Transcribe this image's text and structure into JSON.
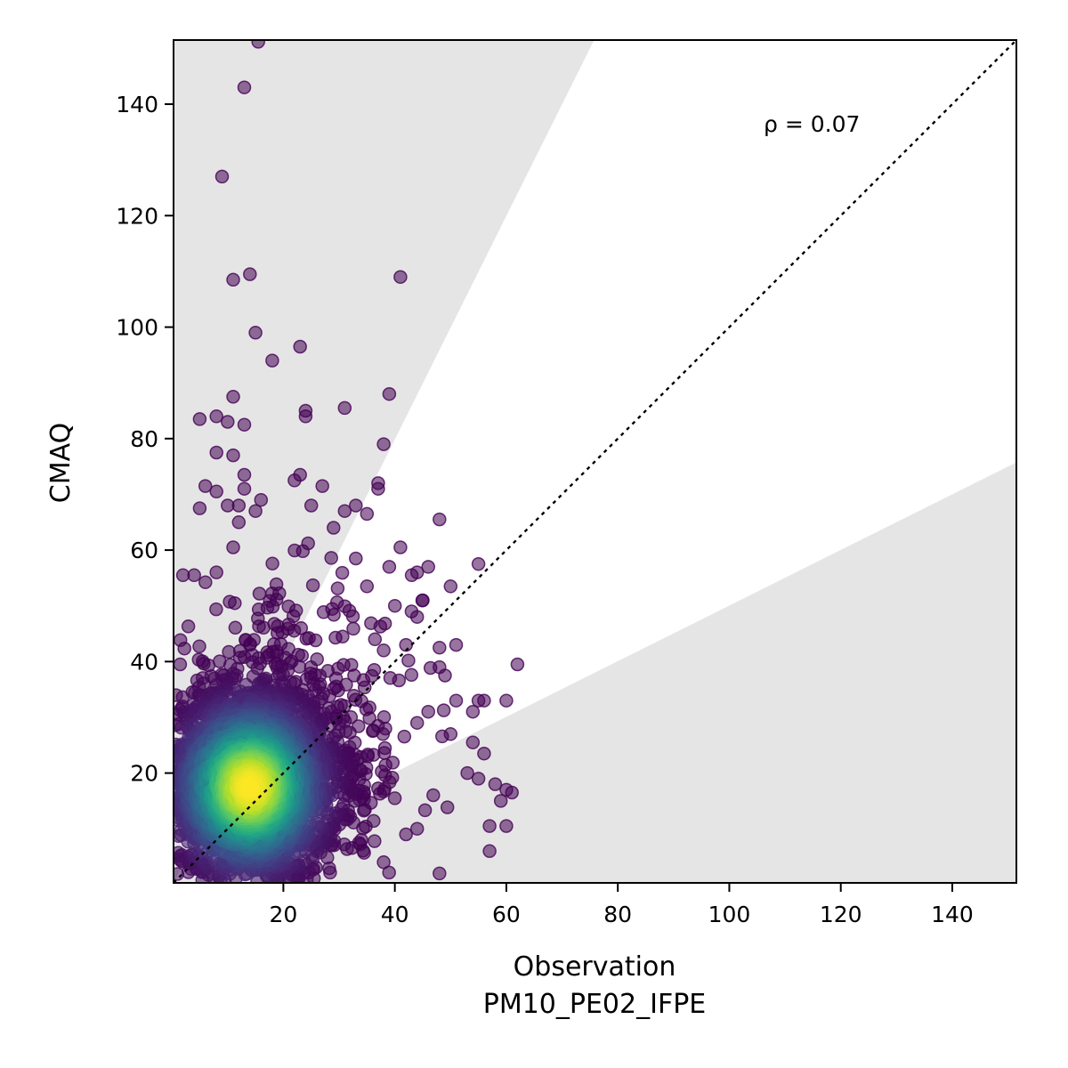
{
  "chart_data": {
    "type": "scatter",
    "xlabel": "Observation",
    "xlabel_sub": "PM10_PE02_IFPE",
    "ylabel": "CMAQ",
    "xlim": [
      0.3,
      151.5
    ],
    "ylim": [
      0.3,
      151.5
    ],
    "xticks": [
      20,
      40,
      60,
      80,
      100,
      120,
      140
    ],
    "yticks": [
      20,
      40,
      60,
      80,
      100,
      120,
      140
    ],
    "annotation": "ρ = 0.07",
    "reference_line": {
      "style": "dotted",
      "slope": 1
    },
    "shaded_regions": [
      {
        "description": "above factor-of-2 band",
        "slope_min": 2.0
      },
      {
        "description": "below factor-of-2 band",
        "slope_max": 0.5
      }
    ],
    "colormap": "viridis",
    "marker_alpha": 0.55,
    "points_outliers": [
      [
        15.5,
        151.2
      ],
      [
        13,
        143
      ],
      [
        9,
        127
      ],
      [
        11,
        108.5
      ],
      [
        14,
        109.5
      ],
      [
        41,
        109
      ],
      [
        15,
        99
      ],
      [
        23,
        96.5
      ],
      [
        18,
        94
      ],
      [
        39,
        88
      ],
      [
        11,
        87.5
      ],
      [
        24,
        85
      ],
      [
        24,
        84
      ],
      [
        31,
        85.5
      ],
      [
        5,
        83.5
      ],
      [
        8,
        84
      ],
      [
        10,
        83
      ],
      [
        13,
        82.5
      ],
      [
        38,
        79
      ],
      [
        8,
        77.5
      ],
      [
        11,
        77
      ],
      [
        13,
        73.5
      ],
      [
        22,
        72.5
      ],
      [
        23,
        73.5
      ],
      [
        27,
        71.5
      ],
      [
        37,
        72
      ],
      [
        37,
        71
      ],
      [
        6,
        71.5
      ],
      [
        8,
        70.5
      ],
      [
        13,
        71
      ],
      [
        16,
        69
      ],
      [
        5,
        67.5
      ],
      [
        10,
        68
      ],
      [
        12,
        68
      ],
      [
        15,
        67
      ],
      [
        31,
        67
      ],
      [
        33,
        68
      ],
      [
        35,
        66.5
      ],
      [
        48,
        65.5
      ],
      [
        25,
        68
      ],
      [
        29,
        64
      ],
      [
        12,
        65
      ],
      [
        11,
        60.5
      ],
      [
        41,
        60.5
      ],
      [
        46,
        57
      ],
      [
        55,
        57.5
      ],
      [
        39,
        57
      ],
      [
        33,
        58.5
      ],
      [
        2,
        55.5
      ],
      [
        4,
        55.5
      ],
      [
        8,
        56
      ],
      [
        44,
        56
      ],
      [
        35,
        53.5
      ],
      [
        50,
        53.5
      ],
      [
        45,
        51
      ],
      [
        40,
        50
      ],
      [
        43,
        49
      ],
      [
        44,
        48
      ],
      [
        42,
        43
      ],
      [
        38,
        42
      ],
      [
        48,
        42.5
      ],
      [
        51,
        43
      ],
      [
        62,
        39.5
      ],
      [
        48,
        39
      ],
      [
        49,
        37.5
      ],
      [
        51,
        33
      ],
      [
        55,
        33
      ],
      [
        56,
        33
      ],
      [
        60,
        33
      ],
      [
        54,
        31
      ],
      [
        46,
        31
      ],
      [
        44,
        29
      ],
      [
        50,
        27
      ],
      [
        54,
        25.5
      ],
      [
        56,
        23.5
      ],
      [
        53,
        20
      ],
      [
        55,
        19
      ],
      [
        58,
        18
      ],
      [
        60,
        17
      ],
      [
        61,
        16.5
      ],
      [
        59,
        15
      ],
      [
        57,
        10.5
      ],
      [
        60,
        10.5
      ],
      [
        57,
        6
      ],
      [
        48,
        2
      ],
      [
        38,
        4
      ],
      [
        42,
        9
      ],
      [
        44,
        10
      ],
      [
        31,
        16
      ],
      [
        29,
        11
      ],
      [
        34,
        8
      ],
      [
        26,
        6
      ],
      [
        21,
        3
      ]
    ]
  }
}
